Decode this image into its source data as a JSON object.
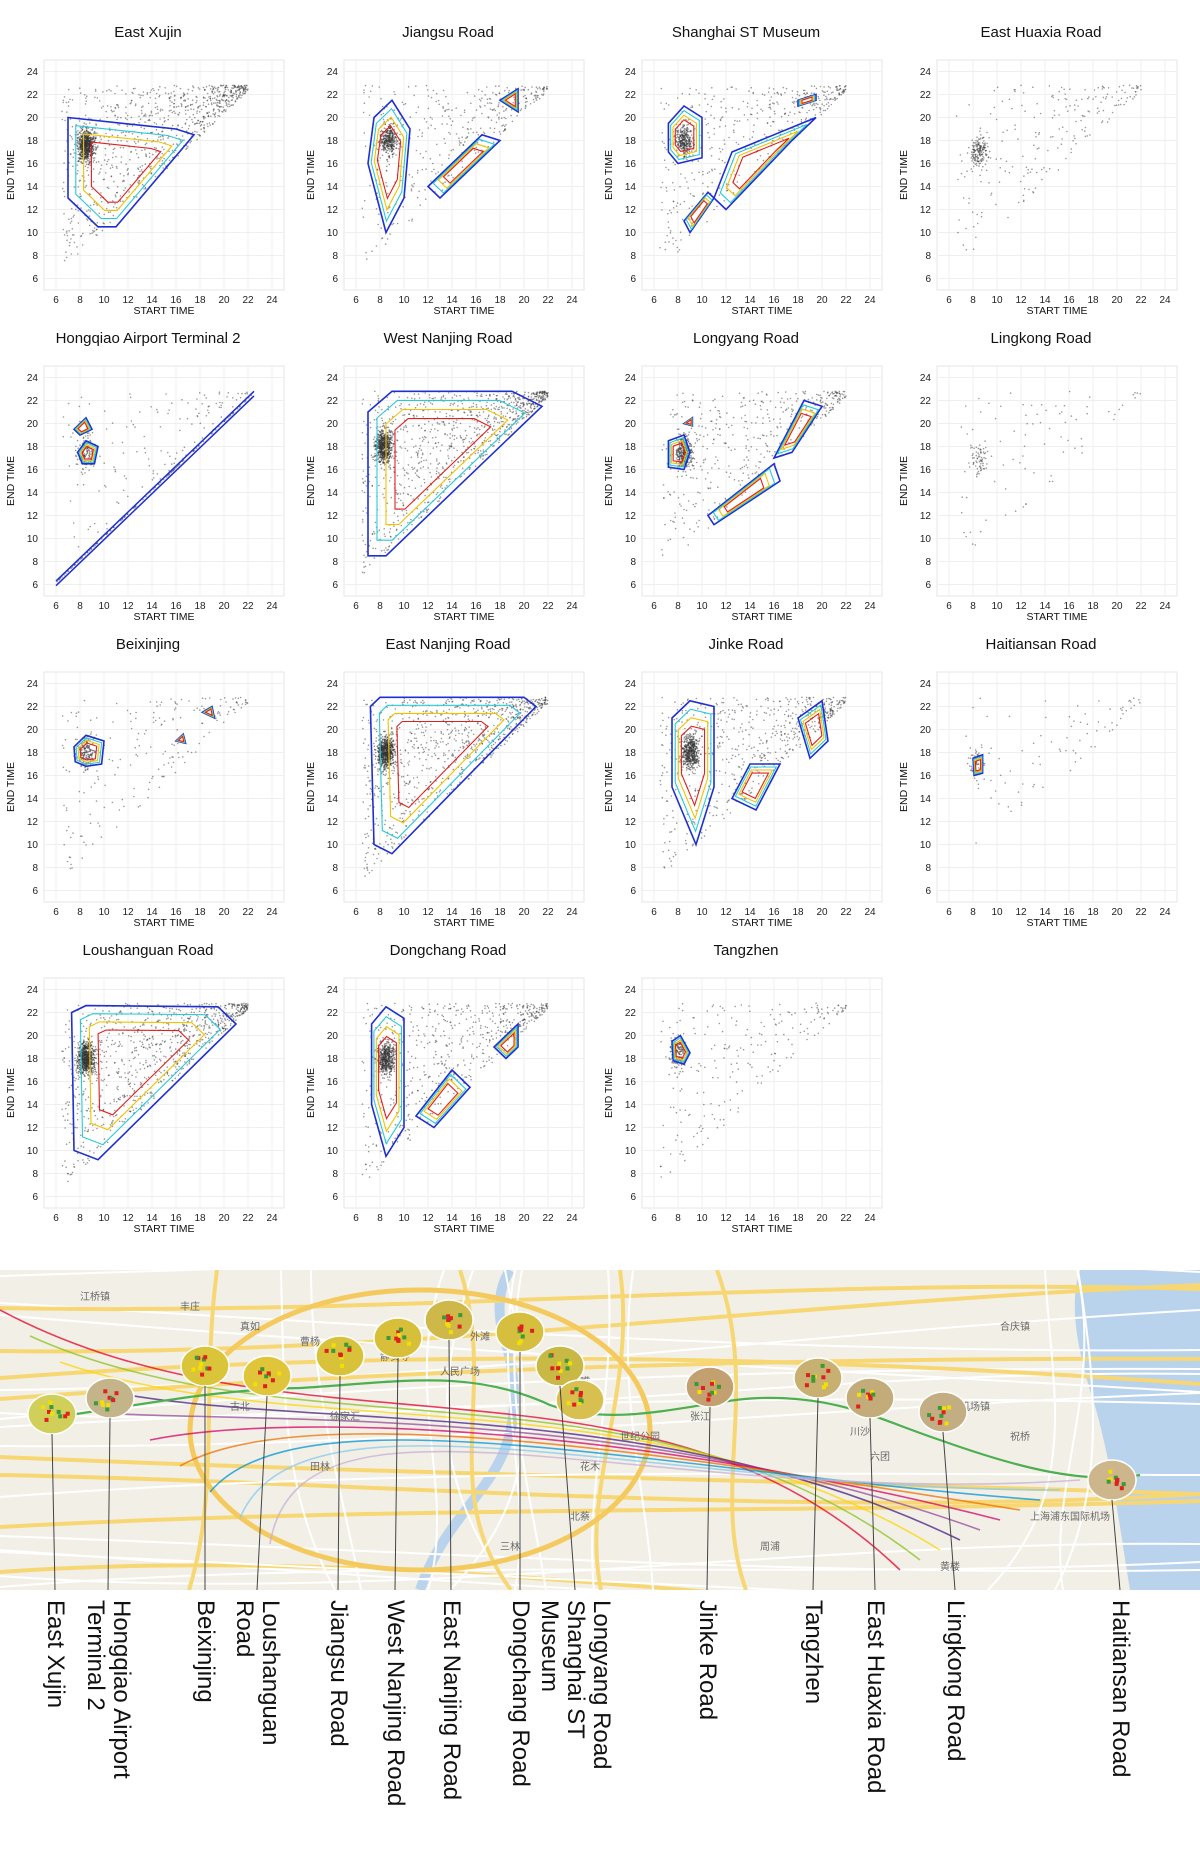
{
  "chart_data": [
    {
      "type": "scatter",
      "title": "East Xujin",
      "xlabel": "START TIME",
      "ylabel": "END TIME",
      "xlim": [
        5,
        25
      ],
      "ylim": [
        5,
        25
      ],
      "xticks": [
        6,
        8,
        10,
        12,
        14,
        16,
        18,
        20,
        22,
        24
      ],
      "yticks": [
        6,
        8,
        10,
        12,
        14,
        16,
        18,
        20,
        22,
        24
      ],
      "density": "very high",
      "cluster": [
        8.5,
        17.5
      ],
      "contours": [
        [
          [
            7,
            20
          ],
          [
            16,
            19
          ],
          [
            17.5,
            18.5
          ],
          [
            11,
            10.5
          ],
          [
            9.5,
            10.5
          ],
          [
            7,
            13
          ]
        ]
      ]
    },
    {
      "type": "scatter",
      "title": "Jiangsu Road",
      "xlabel": "START TIME",
      "ylabel": "END TIME",
      "xlim": [
        5,
        25
      ],
      "ylim": [
        5,
        25
      ],
      "xticks": [
        6,
        8,
        10,
        12,
        14,
        16,
        18,
        20,
        22,
        24
      ],
      "yticks": [
        6,
        8,
        10,
        12,
        14,
        16,
        18,
        20,
        22,
        24
      ],
      "density": "medium",
      "cluster": [
        8.7,
        18
      ],
      "contours": [
        [
          [
            7.5,
            20
          ],
          [
            9,
            21.5
          ],
          [
            10.5,
            19
          ],
          [
            10,
            13
          ],
          [
            8.5,
            10
          ],
          [
            7,
            16
          ]
        ],
        [
          [
            12,
            14
          ],
          [
            16.5,
            18.5
          ],
          [
            18,
            18
          ],
          [
            13,
            13
          ]
        ],
        [
          [
            18,
            21.5
          ],
          [
            19.5,
            22.5
          ],
          [
            19.5,
            20.5
          ]
        ]
      ]
    },
    {
      "type": "scatter",
      "title": "Shanghai ST Museum",
      "xlabel": "START TIME",
      "ylabel": "END TIME",
      "xlim": [
        5,
        25
      ],
      "ylim": [
        5,
        25
      ],
      "xticks": [
        6,
        8,
        10,
        12,
        14,
        16,
        18,
        20,
        22,
        24
      ],
      "yticks": [
        6,
        8,
        10,
        12,
        14,
        16,
        18,
        20,
        22,
        24
      ],
      "density": "medium",
      "cluster": [
        8.5,
        18
      ],
      "contours": [
        [
          [
            7.2,
            19.5
          ],
          [
            8.5,
            21
          ],
          [
            10,
            20
          ],
          [
            10,
            16.5
          ],
          [
            8,
            16
          ],
          [
            7.2,
            17
          ]
        ],
        [
          [
            11,
            13
          ],
          [
            12.5,
            17
          ],
          [
            19.5,
            20
          ],
          [
            17.5,
            18
          ],
          [
            12,
            12
          ]
        ],
        [
          [
            9,
            10
          ],
          [
            11,
            13
          ],
          [
            10.5,
            13.5
          ],
          [
            8.5,
            11
          ]
        ],
        [
          [
            18,
            21.5
          ],
          [
            19.5,
            22
          ],
          [
            19.5,
            21.5
          ],
          [
            18,
            21
          ]
        ]
      ]
    },
    {
      "type": "scatter",
      "title": "East Huaxia Road",
      "xlabel": "START TIME",
      "ylabel": "END TIME",
      "xlim": [
        5,
        25
      ],
      "ylim": [
        5,
        25
      ],
      "xticks": [
        6,
        8,
        10,
        12,
        14,
        16,
        18,
        20,
        22,
        24
      ],
      "yticks": [
        6,
        8,
        10,
        12,
        14,
        16,
        18,
        20,
        22,
        24
      ],
      "density": "low",
      "cluster": [
        8.5,
        17
      ],
      "contours": []
    },
    {
      "type": "scatter",
      "title": "Hongqiao Airport Terminal 2",
      "xlabel": "START TIME",
      "ylabel": "END TIME",
      "xlim": [
        5,
        25
      ],
      "ylim": [
        5,
        25
      ],
      "xticks": [
        6,
        8,
        10,
        12,
        14,
        16,
        18,
        20,
        22,
        24
      ],
      "yticks": [
        6,
        8,
        10,
        12,
        14,
        16,
        18,
        20,
        22,
        24
      ],
      "density": "low",
      "cluster": [
        8.5,
        17.5
      ],
      "diagonal": [
        6,
        22.5
      ],
      "contours": [
        [
          [
            7.8,
            17.5
          ],
          [
            8.5,
            18.5
          ],
          [
            9.5,
            18
          ],
          [
            9.2,
            16.5
          ],
          [
            8.2,
            16.5
          ]
        ],
        [
          [
            7.5,
            19.5
          ],
          [
            8.5,
            20.5
          ],
          [
            9,
            19.5
          ],
          [
            8,
            19
          ]
        ]
      ]
    },
    {
      "type": "scatter",
      "title": "West Nanjing Road",
      "xlabel": "START TIME",
      "ylabel": "END TIME",
      "xlim": [
        5,
        25
      ],
      "ylim": [
        5,
        25
      ],
      "xticks": [
        6,
        8,
        10,
        12,
        14,
        16,
        18,
        20,
        22,
        24
      ],
      "yticks": [
        6,
        8,
        10,
        12,
        14,
        16,
        18,
        20,
        22,
        24
      ],
      "density": "very high",
      "cluster": [
        8.3,
        18
      ],
      "contours": [
        [
          [
            7,
            21
          ],
          [
            9,
            22.8
          ],
          [
            19,
            22.8
          ],
          [
            21.5,
            21.5
          ],
          [
            8.5,
            8.5
          ],
          [
            7,
            8.5
          ]
        ]
      ]
    },
    {
      "type": "scatter",
      "title": "Longyang Road",
      "xlabel": "START TIME",
      "ylabel": "END TIME",
      "xlim": [
        5,
        25
      ],
      "ylim": [
        5,
        25
      ],
      "xticks": [
        6,
        8,
        10,
        12,
        14,
        16,
        18,
        20,
        22,
        24
      ],
      "yticks": [
        6,
        8,
        10,
        12,
        14,
        16,
        18,
        20,
        22,
        24
      ],
      "density": "medium",
      "cluster": [
        8.5,
        17.5
      ],
      "contours": [
        [
          [
            7.2,
            18.5
          ],
          [
            8.5,
            19
          ],
          [
            9,
            17.5
          ],
          [
            8.5,
            16
          ],
          [
            7.2,
            16.2
          ]
        ],
        [
          [
            10.5,
            12
          ],
          [
            16,
            16.5
          ],
          [
            16.5,
            15
          ],
          [
            11,
            11.2
          ]
        ],
        [
          [
            16,
            17
          ],
          [
            18.5,
            22
          ],
          [
            20,
            21.5
          ],
          [
            17.5,
            17.5
          ]
        ],
        [
          [
            8.5,
            20
          ],
          [
            9.2,
            20.5
          ],
          [
            9.2,
            19.8
          ]
        ]
      ]
    },
    {
      "type": "scatter",
      "title": "Lingkong Road",
      "xlabel": "START TIME",
      "ylabel": "END TIME",
      "xlim": [
        5,
        25
      ],
      "ylim": [
        5,
        25
      ],
      "xticks": [
        6,
        8,
        10,
        12,
        14,
        16,
        18,
        20,
        22,
        24
      ],
      "yticks": [
        6,
        8,
        10,
        12,
        14,
        16,
        18,
        20,
        22,
        24
      ],
      "density": "very low",
      "cluster": [
        8.5,
        17
      ],
      "contours": []
    },
    {
      "type": "scatter",
      "title": "Beixinjing",
      "xlabel": "START TIME",
      "ylabel": "END TIME",
      "xlim": [
        5,
        25
      ],
      "ylim": [
        5,
        25
      ],
      "xticks": [
        6,
        8,
        10,
        12,
        14,
        16,
        18,
        20,
        22,
        24
      ],
      "yticks": [
        6,
        8,
        10,
        12,
        14,
        16,
        18,
        20,
        22,
        24
      ],
      "density": "low",
      "cluster": [
        8.5,
        18
      ],
      "contours": [
        [
          [
            7.5,
            18.5
          ],
          [
            8.5,
            19.5
          ],
          [
            10,
            19
          ],
          [
            9.8,
            17
          ],
          [
            8.5,
            16.8
          ],
          [
            7.6,
            17.2
          ]
        ],
        [
          [
            18.2,
            21.5
          ],
          [
            19,
            22
          ],
          [
            19.2,
            21
          ]
        ],
        [
          [
            16,
            19
          ],
          [
            16.6,
            19.6
          ],
          [
            16.8,
            18.8
          ]
        ]
      ]
    },
    {
      "type": "scatter",
      "title": "East Nanjing Road",
      "xlabel": "START TIME",
      "ylabel": "END TIME",
      "xlim": [
        5,
        25
      ],
      "ylim": [
        5,
        25
      ],
      "xticks": [
        6,
        8,
        10,
        12,
        14,
        16,
        18,
        20,
        22,
        24
      ],
      "yticks": [
        6,
        8,
        10,
        12,
        14,
        16,
        18,
        20,
        22,
        24
      ],
      "density": "very high",
      "cluster": [
        8.5,
        18
      ],
      "contours": [
        [
          [
            7.2,
            22
          ],
          [
            8,
            22.8
          ],
          [
            20,
            22.8
          ],
          [
            21,
            22
          ],
          [
            9,
            9.2
          ],
          [
            7.5,
            10
          ]
        ]
      ]
    },
    {
      "type": "scatter",
      "title": "Jinke Road",
      "xlabel": "START TIME",
      "ylabel": "END TIME",
      "xlim": [
        5,
        25
      ],
      "ylim": [
        5,
        25
      ],
      "xticks": [
        6,
        8,
        10,
        12,
        14,
        16,
        18,
        20,
        22,
        24
      ],
      "yticks": [
        6,
        8,
        10,
        12,
        14,
        16,
        18,
        20,
        22,
        24
      ],
      "density": "high",
      "cluster": [
        9,
        18
      ],
      "contours": [
        [
          [
            7.5,
            21
          ],
          [
            9,
            22.5
          ],
          [
            11,
            22
          ],
          [
            11,
            15
          ],
          [
            9.5,
            10
          ],
          [
            7.5,
            15
          ]
        ],
        [
          [
            12.5,
            14
          ],
          [
            14,
            17
          ],
          [
            16.5,
            17
          ],
          [
            14.5,
            13
          ]
        ],
        [
          [
            18,
            21
          ],
          [
            20,
            22.5
          ],
          [
            20.5,
            19
          ],
          [
            19,
            17.5
          ]
        ]
      ]
    },
    {
      "type": "scatter",
      "title": "Haitiansan Road",
      "xlabel": "START TIME",
      "ylabel": "END TIME",
      "xlim": [
        5,
        25
      ],
      "ylim": [
        5,
        25
      ],
      "xticks": [
        6,
        8,
        10,
        12,
        14,
        16,
        18,
        20,
        22,
        24
      ],
      "yticks": [
        6,
        8,
        10,
        12,
        14,
        16,
        18,
        20,
        22,
        24
      ],
      "density": "very low",
      "cluster": [
        8.3,
        17
      ],
      "contours": [
        [
          [
            8,
            17.5
          ],
          [
            8.8,
            17.8
          ],
          [
            8.8,
            16.2
          ],
          [
            8.1,
            16
          ]
        ]
      ]
    },
    {
      "type": "scatter",
      "title": "Loushanguan Road",
      "xlabel": "START TIME",
      "ylabel": "END TIME",
      "xlim": [
        5,
        25
      ],
      "ylim": [
        5,
        25
      ],
      "xticks": [
        6,
        8,
        10,
        12,
        14,
        16,
        18,
        20,
        22,
        24
      ],
      "yticks": [
        6,
        8,
        10,
        12,
        14,
        16,
        18,
        20,
        22,
        24
      ],
      "density": "very high",
      "cluster": [
        8.5,
        18
      ],
      "contours": [
        [
          [
            7.3,
            22
          ],
          [
            8.5,
            22.6
          ],
          [
            19.5,
            22.5
          ],
          [
            21,
            21
          ],
          [
            9.5,
            9.2
          ],
          [
            7.5,
            10
          ]
        ]
      ]
    },
    {
      "type": "scatter",
      "title": "Dongchang Road",
      "xlabel": "START TIME",
      "ylabel": "END TIME",
      "xlim": [
        5,
        25
      ],
      "ylim": [
        5,
        25
      ],
      "xticks": [
        6,
        8,
        10,
        12,
        14,
        16,
        18,
        20,
        22,
        24
      ],
      "yticks": [
        6,
        8,
        10,
        12,
        14,
        16,
        18,
        20,
        22,
        24
      ],
      "density": "high",
      "cluster": [
        8.5,
        18
      ],
      "contours": [
        [
          [
            7.3,
            21
          ],
          [
            8.5,
            22.5
          ],
          [
            10,
            21.5
          ],
          [
            10,
            12
          ],
          [
            8.5,
            9.5
          ],
          [
            7.3,
            14
          ]
        ],
        [
          [
            11,
            13
          ],
          [
            14,
            17
          ],
          [
            15.5,
            15.5
          ],
          [
            12.5,
            12
          ]
        ],
        [
          [
            17.5,
            19
          ],
          [
            19.5,
            21
          ],
          [
            19.5,
            19
          ],
          [
            18.5,
            18
          ]
        ]
      ]
    },
    {
      "type": "scatter",
      "title": "Tangzhen",
      "xlabel": "START TIME",
      "ylabel": "END TIME",
      "xlim": [
        5,
        25
      ],
      "ylim": [
        5,
        25
      ],
      "xticks": [
        6,
        8,
        10,
        12,
        14,
        16,
        18,
        20,
        22,
        24
      ],
      "yticks": [
        6,
        8,
        10,
        12,
        14,
        16,
        18,
        20,
        22,
        24
      ],
      "density": "low",
      "cluster": [
        8,
        18.5
      ],
      "contours": [
        [
          [
            7.5,
            19.5
          ],
          [
            8.2,
            20
          ],
          [
            9,
            18.5
          ],
          [
            8.5,
            17.5
          ],
          [
            7.6,
            17.8
          ]
        ]
      ]
    }
  ],
  "map": {
    "place_labels": [
      "江桥镇",
      "丰庄",
      "真如",
      "曹杨",
      "虹桥",
      "古北",
      "田林",
      "徐家汇",
      "静安寺",
      "人民广场",
      "外滩",
      "陆家嘴",
      "世纪公园",
      "花木",
      "张江",
      "川沙",
      "唐镇",
      "六团",
      "机场镇",
      "祝桥",
      "合庆镇",
      "上海浦东国际机场",
      "北蔡",
      "三林",
      "周浦",
      "黄楼"
    ]
  },
  "stations": [
    {
      "label": "East Xujin"
    },
    {
      "label": "Hongqiao Airport\nTerminal 2"
    },
    {
      "label": "Beixinjing"
    },
    {
      "label": "Loushanguan\nRoad"
    },
    {
      "label": "Jiangsu Road"
    },
    {
      "label": "West Nanjing Road"
    },
    {
      "label": "East Nanjing Road"
    },
    {
      "label": "Dongchang Road"
    },
    {
      "label": "Longyang Road\nShanghai ST\nMuseum"
    },
    {
      "label": "Jinke Road"
    },
    {
      "label": "Tangzhen"
    },
    {
      "label": "East Huaxia Road"
    },
    {
      "label": "Lingkong Road"
    },
    {
      "label": "Haitiansan Road"
    }
  ],
  "colors": {
    "outer": "#1f2fd0",
    "mid": "#2ac9d8",
    "inner": "#f2c200",
    "core": "#e02020",
    "dots": "#333333"
  }
}
